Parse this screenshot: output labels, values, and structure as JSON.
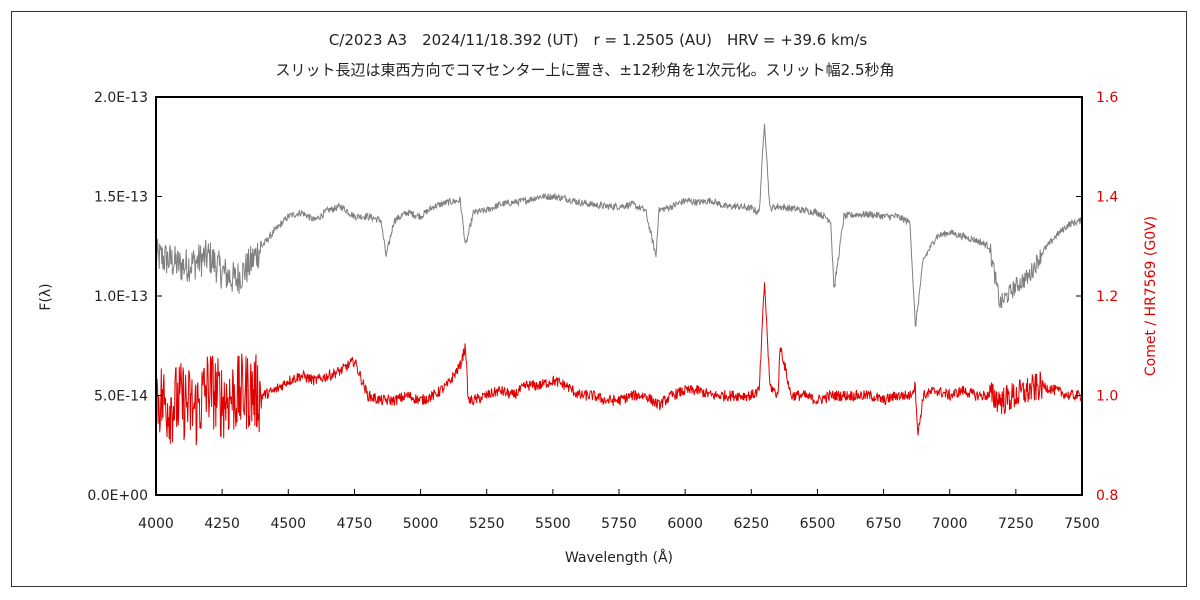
{
  "chart_data": {
    "type": "line",
    "title": "C/2023 A3　2024/11/18.392 (UT)　r = 1.2505 (AU)　HRV = +39.6 km/s",
    "subtitle": "スリット長辺は東西方向でコマセンター上に置き、±12秒角を1次元化。スリット幅2.5秒角",
    "xlabel": "Wavelength (Å)",
    "ylabel": "F(λ)",
    "ylabel_right": "Comet / HR7569 (G0V)",
    "xlim": [
      4000,
      7500
    ],
    "ylim": [
      0,
      2e-13
    ],
    "ylim_right": [
      0.8,
      1.6
    ],
    "x_ticks": [
      "4000",
      "4250",
      "4500",
      "4750",
      "5000",
      "5250",
      "5500",
      "5750",
      "6000",
      "6250",
      "6500",
      "6750",
      "7000",
      "7250",
      "7500"
    ],
    "y_ticks": [
      "0.0E+00",
      "5.0E-14",
      "1.0E-13",
      "1.5E-13",
      "2.0E-13"
    ],
    "y_ticks_right": [
      "0.8",
      "1.0",
      "1.2",
      "1.4",
      "1.6"
    ],
    "grid": false,
    "colors": {
      "series_flux": "#808080",
      "series_ratio": "#e00000",
      "right_axis": "#e00000"
    },
    "series": [
      {
        "axis": "left",
        "x": [
          4000,
          4050,
          4100,
          4150,
          4200,
          4250,
          4300,
          4350,
          4400,
          4450,
          4500,
          4550,
          4600,
          4650,
          4700,
          4750,
          4800,
          4850,
          4870,
          4900,
          4950,
          5000,
          5050,
          5100,
          5150,
          5170,
          5200,
          5250,
          5300,
          5350,
          5400,
          5450,
          5500,
          5550,
          5600,
          5650,
          5700,
          5750,
          5800,
          5850,
          5890,
          5900,
          5950,
          6000,
          6050,
          6100,
          6150,
          6200,
          6250,
          6280,
          6300,
          6320,
          6350,
          6400,
          6450,
          6500,
          6550,
          6563,
          6600,
          6650,
          6700,
          6750,
          6800,
          6850,
          6870,
          6900,
          6950,
          7000,
          7050,
          7100,
          7150,
          7190,
          7250,
          7300,
          7350,
          7400,
          7450,
          7500
        ],
        "values": [
          1.2e-13,
          1.18e-13,
          1.15e-13,
          1.17e-13,
          1.2e-13,
          1.12e-13,
          1.08e-13,
          1.15e-13,
          1.25e-13,
          1.33e-13,
          1.4e-13,
          1.42e-13,
          1.38e-13,
          1.43e-13,
          1.45e-13,
          1.4e-13,
          1.4e-13,
          1.38e-13,
          1.2e-13,
          1.38e-13,
          1.42e-13,
          1.4e-13,
          1.45e-13,
          1.47e-13,
          1.48e-13,
          1.25e-13,
          1.42e-13,
          1.43e-13,
          1.46e-13,
          1.47e-13,
          1.48e-13,
          1.5e-13,
          1.5e-13,
          1.49e-13,
          1.47e-13,
          1.46e-13,
          1.45e-13,
          1.45e-13,
          1.46e-13,
          1.43e-13,
          1.2e-13,
          1.43e-13,
          1.45e-13,
          1.48e-13,
          1.47e-13,
          1.48e-13,
          1.45e-13,
          1.45e-13,
          1.44e-13,
          1.42e-13,
          1.88e-13,
          1.44e-13,
          1.45e-13,
          1.44e-13,
          1.43e-13,
          1.42e-13,
          1.38e-13,
          1.03e-13,
          1.4e-13,
          1.41e-13,
          1.41e-13,
          1.4e-13,
          1.4e-13,
          1.37e-13,
          8.4e-14,
          1.18e-13,
          1.3e-13,
          1.32e-13,
          1.3e-13,
          1.28e-13,
          1.25e-13,
          9.6e-14,
          1.05e-13,
          1.1e-13,
          1.22e-13,
          1.3e-13,
          1.36e-13,
          1.38e-13
        ]
      },
      {
        "axis": "right",
        "x": [
          4000,
          4050,
          4100,
          4150,
          4200,
          4250,
          4300,
          4350,
          4400,
          4450,
          4500,
          4550,
          4600,
          4650,
          4700,
          4750,
          4800,
          4850,
          4900,
          4950,
          5000,
          5050,
          5100,
          5150,
          5170,
          5180,
          5200,
          5250,
          5300,
          5350,
          5400,
          5450,
          5500,
          5550,
          5600,
          5650,
          5700,
          5750,
          5800,
          5850,
          5900,
          5950,
          6000,
          6050,
          6100,
          6150,
          6200,
          6250,
          6280,
          6300,
          6320,
          6350,
          6360,
          6400,
          6450,
          6500,
          6550,
          6600,
          6650,
          6700,
          6750,
          6800,
          6850,
          6870,
          6880,
          6900,
          6950,
          7000,
          7050,
          7100,
          7150,
          7200,
          7250,
          7300,
          7350,
          7400,
          7450,
          7500
        ],
        "values": [
          1.0,
          0.98,
          0.99,
          0.97,
          1.02,
          0.99,
          1.0,
          1.01,
          1.0,
          1.01,
          1.03,
          1.04,
          1.03,
          1.04,
          1.05,
          1.07,
          1.0,
          0.99,
          0.99,
          1.0,
          0.99,
          1.0,
          1.02,
          1.06,
          1.1,
          0.99,
          0.99,
          1.0,
          1.01,
          1.0,
          1.02,
          1.02,
          1.03,
          1.02,
          1.0,
          1.0,
          0.99,
          0.99,
          1.0,
          1.0,
          0.98,
          1.0,
          1.01,
          1.01,
          1.0,
          1.0,
          1.0,
          1.0,
          1.01,
          1.23,
          1.02,
          1.0,
          1.1,
          1.0,
          1.0,
          0.99,
          1.0,
          1.0,
          1.0,
          1.0,
          0.99,
          1.0,
          1.0,
          1.02,
          0.92,
          1.0,
          1.01,
          1.0,
          1.01,
          1.0,
          1.0,
          0.99,
          1.0,
          1.01,
          1.02,
          1.01,
          1.0,
          1.0
        ]
      }
    ]
  }
}
